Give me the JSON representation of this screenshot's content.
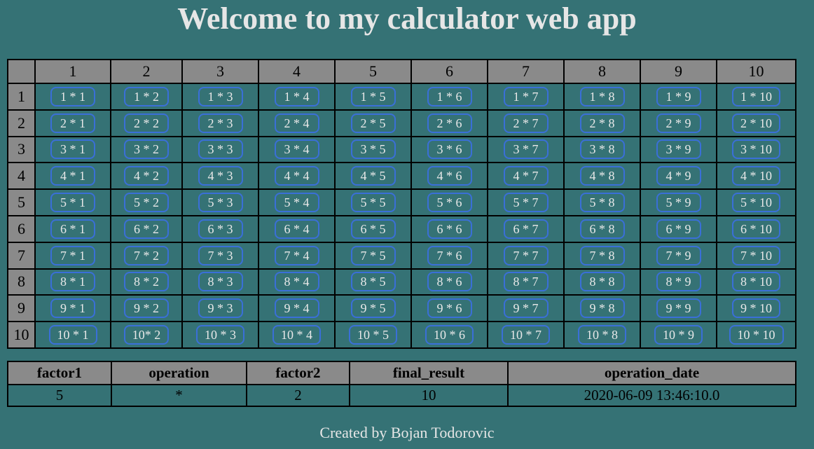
{
  "page": {
    "title": "Welcome to my calculator web app",
    "footer": "Created by Bojan Todorovic"
  },
  "grid": {
    "columns": [
      "1",
      "2",
      "3",
      "4",
      "5",
      "6",
      "7",
      "8",
      "9",
      "10"
    ],
    "rows": [
      {
        "label": "1",
        "cells": [
          "1 * 1",
          "1 * 2",
          "1 * 3",
          "1 * 4",
          "1 * 5",
          "1 * 6",
          "1 * 7",
          "1 * 8",
          "1 * 9",
          "1 * 10"
        ]
      },
      {
        "label": "2",
        "cells": [
          "2 * 1",
          "2 * 2",
          "2 * 3",
          "2 * 4",
          "2 * 5",
          "2 * 6",
          "2 * 7",
          "2 * 8",
          "2 * 9",
          "2 * 10"
        ]
      },
      {
        "label": "3",
        "cells": [
          "3 * 1",
          "3 * 2",
          "3 * 3",
          "3 * 4",
          "3 * 5",
          "3 * 6",
          "3 * 7",
          "3 * 8",
          "3 * 9",
          "3 * 10"
        ]
      },
      {
        "label": "4",
        "cells": [
          "4 * 1",
          "4 * 2",
          "4 * 3",
          "4 * 4",
          "4 * 5",
          "4 * 6",
          "4 * 7",
          "4 * 8",
          "4 * 9",
          "4 * 10"
        ]
      },
      {
        "label": "5",
        "cells": [
          "5 * 1",
          "5 * 2",
          "5 * 3",
          "5 * 4",
          "5 * 5",
          "5 * 6",
          "5 * 7",
          "5 * 8",
          "5 * 9",
          "5 * 10"
        ]
      },
      {
        "label": "6",
        "cells": [
          "6 * 1",
          "6 * 2",
          "6 * 3",
          "6 * 4",
          "6 * 5",
          "6 * 6",
          "6 * 7",
          "6 * 8",
          "6 * 9",
          "6 * 10"
        ]
      },
      {
        "label": "7",
        "cells": [
          "7 * 1",
          "7 * 2",
          "7 * 3",
          "7 * 4",
          "7 * 5",
          "7 * 6",
          "7 * 7",
          "7 * 8",
          "7 * 9",
          "7 * 10"
        ]
      },
      {
        "label": "8",
        "cells": [
          "8 * 1",
          "8 * 2",
          "8 * 3",
          "8 * 4",
          "8 * 5",
          "8 * 6",
          "8 * 7",
          "8 * 8",
          "8 * 9",
          "8 * 10"
        ]
      },
      {
        "label": "9",
        "cells": [
          "9 * 1",
          "9 * 2",
          "9 * 3",
          "9 * 4",
          "9 * 5",
          "9 * 6",
          "9 * 7",
          "9 * 8",
          "9 * 9",
          "9 * 10"
        ]
      },
      {
        "label": "10",
        "cells": [
          "10 * 1",
          "10* 2",
          "10 * 3",
          "10 * 4",
          "10 * 5",
          "10 * 6",
          "10 * 7",
          "10 * 8",
          "10 * 9",
          "10 * 10"
        ]
      }
    ]
  },
  "result": {
    "headers": [
      "factor1",
      "operation",
      "factor2",
      "final_result",
      "operation_date"
    ],
    "row": [
      "5",
      "*",
      "2",
      "10",
      "2020-06-09 13:46:10.0"
    ]
  },
  "colors": {
    "background": "#357275",
    "header_gray": "#8a8a8a",
    "button_border": "#3a6fd8",
    "text_light": "#e6e6e6"
  }
}
